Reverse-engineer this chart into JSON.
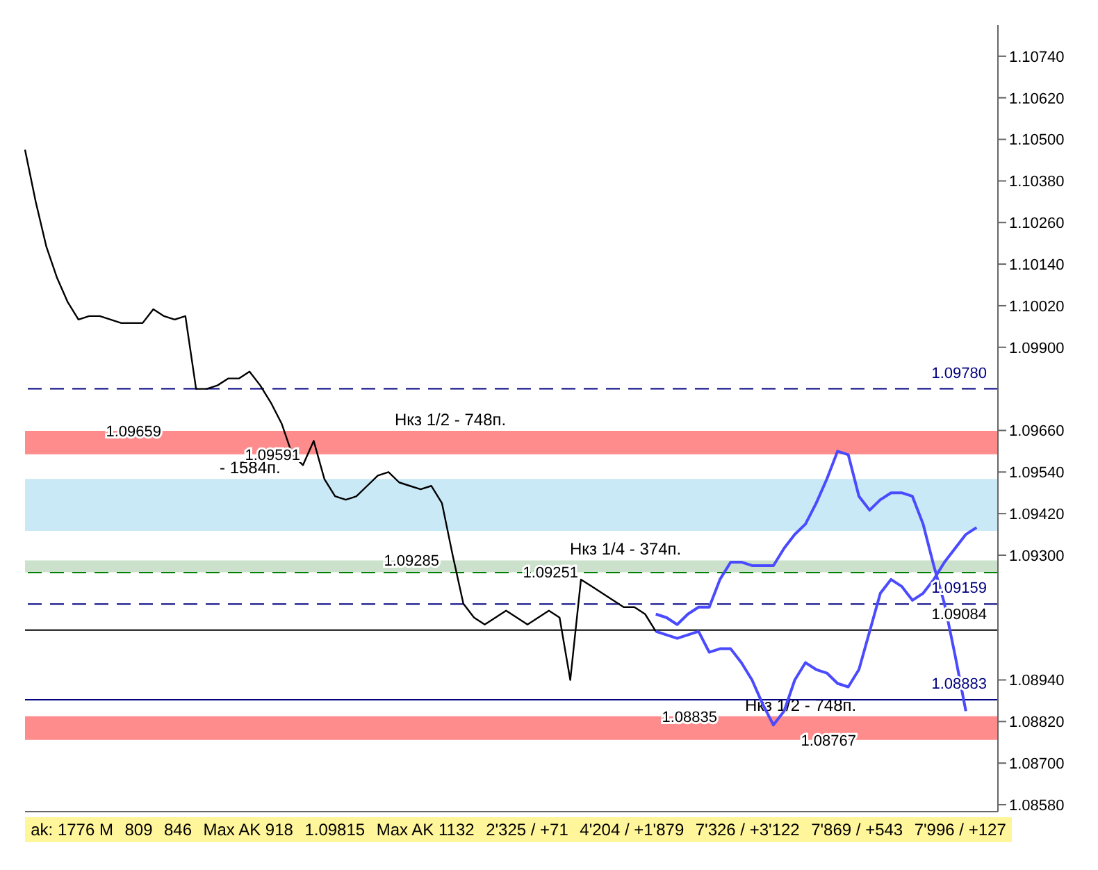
{
  "chart_data": {
    "type": "line",
    "categories": [
      null,
      null,
      null,
      null,
      null,
      null,
      null,
      null,
      null,
      null,
      null,
      null,
      null,
      null,
      null,
      null,
      null,
      null,
      null,
      null,
      null,
      null,
      null,
      null,
      null,
      null,
      null,
      null,
      null,
      null,
      null,
      null,
      null,
      null,
      null,
      null,
      null,
      null,
      null,
      null,
      null,
      null,
      null,
      null,
      null,
      null,
      null,
      null,
      null,
      null,
      null,
      null,
      null,
      null,
      null,
      null,
      null,
      null,
      null,
      null,
      null,
      null,
      null,
      null,
      null,
      null,
      null,
      null,
      null,
      null,
      null,
      null,
      null,
      null,
      null,
      null,
      null,
      null,
      null,
      null,
      null,
      null,
      null,
      null,
      null,
      null,
      null,
      null,
      null,
      null,
      null,
      null
    ],
    "series": [
      {
        "color": "#000000",
        "values": [
          1.1047,
          1.1032,
          1.1019,
          1.101,
          1.1003,
          1.0998,
          1.0999,
          1.0999,
          1.0998,
          1.0997,
          1.0997,
          1.0997,
          1.1001,
          1.0999,
          1.0998,
          1.0999,
          1.0978,
          1.0978,
          1.0979,
          1.0981,
          1.0981,
          1.0983,
          1.0979,
          1.0974,
          1.0968,
          1.0959,
          1.0956,
          1.0963,
          1.0952,
          1.0947,
          1.0946,
          1.0947,
          1.095,
          1.0953,
          1.0954,
          1.0951,
          1.095,
          1.0949,
          1.095,
          1.0945,
          1.093,
          1.0916,
          1.0912,
          1.091,
          1.0912,
          1.0914,
          1.0912,
          1.091,
          1.0912,
          1.0914,
          1.0912,
          1.0894,
          1.0923,
          1.0921,
          1.0919,
          1.0917,
          1.0915,
          1.0915,
          1.0913,
          1.0908,
          null,
          null,
          null,
          null,
          null,
          null,
          null,
          null,
          null,
          null,
          null,
          null,
          null,
          null,
          null,
          null,
          null,
          null,
          null,
          null,
          null,
          null,
          null,
          null,
          null,
          null,
          null,
          null,
          null,
          null,
          null,
          null
        ]
      },
      {
        "color": "#4a4aff",
        "values": [
          null,
          null,
          null,
          null,
          null,
          null,
          null,
          null,
          null,
          null,
          null,
          null,
          null,
          null,
          null,
          null,
          null,
          null,
          null,
          null,
          null,
          null,
          null,
          null,
          null,
          null,
          null,
          null,
          null,
          null,
          null,
          null,
          null,
          null,
          null,
          null,
          null,
          null,
          null,
          null,
          null,
          null,
          null,
          null,
          null,
          null,
          null,
          null,
          null,
          null,
          null,
          null,
          null,
          null,
          null,
          null,
          null,
          null,
          null,
          1.0913,
          1.0912,
          1.091,
          1.0913,
          1.0915,
          1.0915,
          1.0923,
          1.0928,
          1.0928,
          1.0927,
          1.0927,
          1.0927,
          1.0932,
          1.0936,
          1.0939,
          1.0945,
          1.0952,
          1.096,
          1.0959,
          1.0947,
          1.0943,
          1.0946,
          1.0948,
          1.0948,
          1.0947,
          1.0939,
          1.0927,
          1.0916,
          1.0901,
          1.0885,
          null,
          null,
          null
        ]
      },
      {
        "color": "#4a4aff",
        "values": [
          null,
          null,
          null,
          null,
          null,
          null,
          null,
          null,
          null,
          null,
          null,
          null,
          null,
          null,
          null,
          null,
          null,
          null,
          null,
          null,
          null,
          null,
          null,
          null,
          null,
          null,
          null,
          null,
          null,
          null,
          null,
          null,
          null,
          null,
          null,
          null,
          null,
          null,
          null,
          null,
          null,
          null,
          null,
          null,
          null,
          null,
          null,
          null,
          null,
          null,
          null,
          null,
          null,
          null,
          null,
          null,
          null,
          null,
          null,
          1.0908,
          1.0907,
          1.0906,
          1.0907,
          1.0908,
          1.0902,
          1.0903,
          1.0903,
          1.0899,
          1.0894,
          1.0887,
          1.0881,
          1.0885,
          1.0894,
          1.0899,
          1.0897,
          1.0896,
          1.0893,
          1.0892,
          1.0897,
          1.0908,
          1.0919,
          1.0923,
          1.0921,
          1.0917,
          1.0919,
          1.0923,
          1.0928,
          1.0932,
          1.0936,
          1.0938,
          null,
          null
        ]
      }
    ],
    "ylim": [
      1.0856,
      1.1083
    ],
    "yticks": [
      {
        "value": 1.1074,
        "label": "1.10740"
      },
      {
        "value": 1.1062,
        "label": "1.10620"
      },
      {
        "value": 1.105,
        "label": "1.10500"
      },
      {
        "value": 1.1038,
        "label": "1.10380"
      },
      {
        "value": 1.1026,
        "label": "1.10260"
      },
      {
        "value": 1.1014,
        "label": "1.10140"
      },
      {
        "value": 1.1002,
        "label": "1.10020"
      },
      {
        "value": 1.099,
        "label": "1.09900"
      },
      {
        "value": 1.0966,
        "label": "1.09660"
      },
      {
        "value": 1.0954,
        "label": "1.09540"
      },
      {
        "value": 1.0942,
        "label": "1.09420"
      },
      {
        "value": 1.093,
        "label": "1.09300"
      },
      {
        "value": 1.0894,
        "label": "1.08940"
      },
      {
        "value": 1.0882,
        "label": "1.08820"
      },
      {
        "value": 1.087,
        "label": "1.08700"
      },
      {
        "value": 1.0858,
        "label": "1.08580"
      }
    ],
    "tick_labels": "y",
    "grid": false,
    "legend": false,
    "marker": "none",
    "ref_lines": [
      {
        "axis": "y",
        "value": 1.0978,
        "label": "1.09780",
        "color": "#000080",
        "line_style": "dashed"
      },
      {
        "axis": "y",
        "value": 1.09159,
        "label": "1.09159",
        "color": "#000080",
        "line_style": "dashed"
      },
      {
        "axis": "y",
        "value": 1.08883,
        "label": "1.08883",
        "color": "#000080",
        "line_style": "solid"
      },
      {
        "axis": "y",
        "value": 1.09084,
        "label": "1.09084",
        "color": "#000000",
        "line_style": "solid"
      },
      {
        "axis": "y",
        "value": 1.0925,
        "color": "#008000",
        "line_style": "dashed"
      }
    ],
    "bands": [
      {
        "axis": "y",
        "from": 1.0937,
        "to": 1.0952,
        "label": "- 1584п.",
        "color": "#87ceeb"
      },
      {
        "axis": "y",
        "from": 1.09591,
        "to": 1.09659,
        "label": "Нкз 1/2 - 748п.",
        "color": "#ff0000"
      },
      {
        "axis": "y",
        "from": 1.09251,
        "to": 1.09285,
        "label": "Нкз 1/4 - 374п.",
        "color": "#8fbc8f"
      },
      {
        "axis": "y",
        "from": 1.08767,
        "to": 1.08835,
        "label": "Нкз 1/2 - 748п.",
        "color": "#ff0000"
      }
    ],
    "annotations": [
      "ak: 1776 M",
      "809",
      "846",
      "Max AK 918",
      "1.09815",
      {
        "text": "1.09659",
        "y": 1.09659
      },
      {
        "text": "1.09591",
        "y": 1.09591
      },
      {
        "text": "1.09285",
        "y": 1.09285
      },
      {
        "text": "1.09251",
        "y": 1.09251
      },
      {
        "text": "1.08835",
        "y": 1.08835
      },
      {
        "text": "1.08767",
        "y": 1.08767
      },
      "Max AK 1132",
      "2'325 / +71",
      "4'204 / +1'879",
      "7'326 / +3'122",
      "7'869 / +543",
      "7'996 / +127"
    ]
  }
}
